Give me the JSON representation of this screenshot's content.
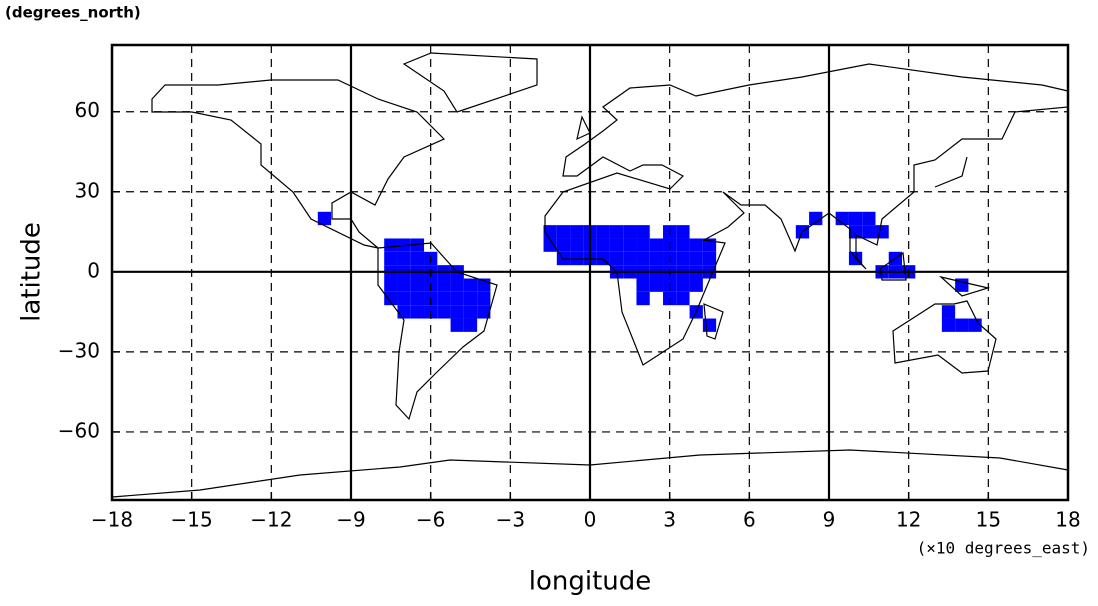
{
  "chart_data": {
    "type": "map",
    "y_units_label": "(degrees_north)",
    "x_units_label": "(×10 degrees_east)",
    "xlabel": "longitude",
    "ylabel": "latitude",
    "xlim": [
      -18,
      18
    ],
    "ylim": [
      -85.5,
      85
    ],
    "xticks": [
      {
        "value": -18,
        "label": "−18"
      },
      {
        "value": -15,
        "label": "−15"
      },
      {
        "value": -12,
        "label": "−12"
      },
      {
        "value": -9,
        "label": "−9"
      },
      {
        "value": -6,
        "label": "−6"
      },
      {
        "value": -3,
        "label": "−3"
      },
      0,
      3,
      6,
      9,
      12,
      15,
      18
    ],
    "yticks": [
      {
        "value": -60,
        "label": "−60"
      },
      {
        "value": -30,
        "label": "−30"
      },
      0,
      30,
      60
    ],
    "grid": true,
    "solid_xlines": [
      -9,
      0,
      9
    ],
    "solid_ylines": [
      0
    ],
    "cells": {
      "color": "#0000ff",
      "cell_width": 0.5,
      "cell_height": 5,
      "x": [
        -10,
        -7.5,
        -7,
        -6.5,
        -7.5,
        -7,
        -6.5,
        -6,
        -7.5,
        -7,
        -6.5,
        -6,
        -5.5,
        -5,
        -7.5,
        -7,
        -6.5,
        -6,
        -5.5,
        -5,
        -4.5,
        -4,
        -7.5,
        -7,
        -6.5,
        -6,
        -5.5,
        -5,
        -4.5,
        -4,
        -7,
        -6.5,
        -6,
        -5.5,
        -5,
        -4.5,
        -4,
        -5,
        -4.5,
        -1.5,
        -1,
        -0.5,
        0,
        0.5,
        1,
        1.5,
        2,
        3,
        3.5,
        -1.5,
        -1,
        -0.5,
        0,
        0.5,
        1,
        1.5,
        2,
        2.5,
        3,
        3.5,
        4,
        4.5,
        -1,
        -0.5,
        0,
        0.5,
        1,
        1.5,
        2,
        2.5,
        3,
        3.5,
        4,
        4.5,
        1,
        1.5,
        2,
        2.5,
        3,
        3.5,
        4,
        4.5,
        2,
        2.5,
        3,
        3.5,
        4,
        2,
        3,
        3.5,
        4,
        4.5,
        8,
        8.5,
        9.5,
        10,
        10.5,
        10,
        10.5,
        11,
        10,
        11,
        11.5,
        11.5,
        12,
        14,
        13.5,
        13.5,
        14,
        14.5
      ],
      "y": [
        20,
        10,
        10,
        10,
        5,
        5,
        5,
        5,
        0,
        0,
        0,
        0,
        0,
        0,
        -5,
        -5,
        -5,
        -5,
        -5,
        -5,
        -5,
        -5,
        -10,
        -10,
        -10,
        -10,
        -10,
        -10,
        -10,
        -10,
        -15,
        -15,
        -15,
        -15,
        -15,
        -15,
        -15,
        -20,
        -20,
        15,
        15,
        15,
        15,
        15,
        15,
        15,
        15,
        15,
        15,
        10,
        10,
        10,
        10,
        10,
        10,
        10,
        10,
        10,
        10,
        10,
        10,
        10,
        5,
        5,
        5,
        5,
        5,
        5,
        5,
        5,
        5,
        5,
        5,
        5,
        0,
        0,
        0,
        0,
        0,
        0,
        0,
        0,
        -5,
        -5,
        -5,
        -5,
        -5,
        -10,
        -10,
        -10,
        -15,
        -20,
        15,
        20,
        20,
        20,
        20,
        15,
        15,
        15,
        5,
        0,
        5,
        0,
        0,
        -5,
        -15,
        -20,
        -20,
        -20
      ]
    }
  }
}
